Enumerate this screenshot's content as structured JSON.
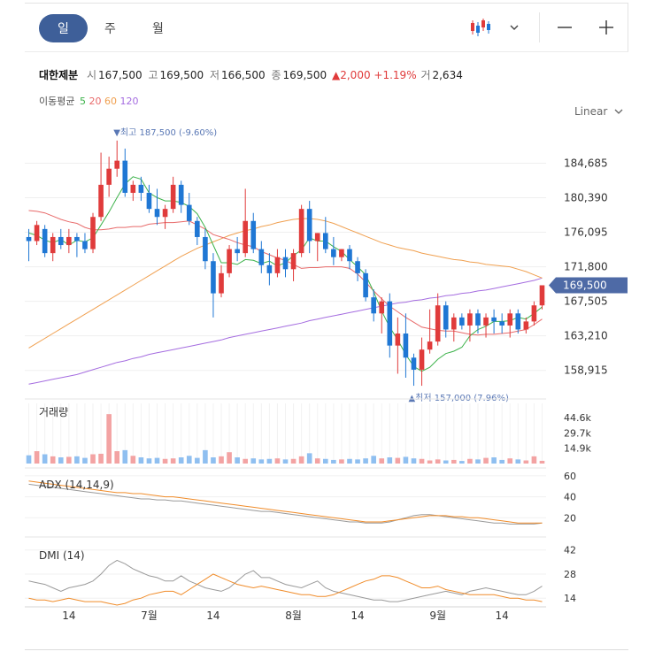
{
  "tabs": [
    "일",
    "주",
    "월"
  ],
  "selected_tab": "일",
  "scale_mode": "Linear",
  "icons": {
    "chart_type": "candlestick-chart-icon",
    "dropdown": "chevron-down-icon",
    "zoom_out": "minus-icon",
    "zoom_in": "plus-icon"
  },
  "colors": {
    "up": "#e03b3b",
    "down": "#1f77d4",
    "tab_active": "#3e5f99",
    "ma5": "#3cb24a",
    "ma20": "#e86a6a",
    "ma60": "#f0a050",
    "ma120": "#a56de0",
    "price_badge": "#4e6aa6"
  },
  "stock": {
    "name": "대한제분",
    "open_label": "시",
    "open": "167,500",
    "high_label": "고",
    "high": "169,500",
    "low_label": "저",
    "low": "166,500",
    "close_label": "종",
    "close": "169,500",
    "change": "▲2,000",
    "change_pct": "+1.19%",
    "volume_label": "거",
    "volume": "2,634"
  },
  "moving_average": {
    "label": "이동평균",
    "periods": [
      "5",
      "20",
      "60",
      "120"
    ]
  },
  "chart_data": {
    "type": "candlestick",
    "price_axis": {
      "ticks": [
        "184,685",
        "180,390",
        "176,095",
        "171,800",
        "167,505",
        "163,210",
        "158,915"
      ],
      "ylim": [
        155800,
        189800
      ]
    },
    "current_price": "169,500",
    "max_marker": "▼최고 187,500 (-9.60%)",
    "min_marker": "▲최저 157,000 (7.96%)",
    "x_labels": [
      "14",
      "7월",
      "14",
      "8월",
      "14",
      "9월",
      "14"
    ],
    "ohlc": [
      [
        175500,
        176500,
        172500,
        175000
      ],
      [
        175000,
        177500,
        174500,
        177000
      ],
      [
        176500,
        177000,
        173000,
        173500
      ],
      [
        173500,
        176000,
        172500,
        175500
      ],
      [
        175500,
        176500,
        174000,
        174500
      ],
      [
        174500,
        176500,
        173500,
        175500
      ],
      [
        175500,
        176000,
        173000,
        175000
      ],
      [
        175000,
        176000,
        173500,
        174000
      ],
      [
        174000,
        178500,
        173500,
        178000
      ],
      [
        178000,
        186000,
        177500,
        182000
      ],
      [
        182000,
        185500,
        180500,
        184000
      ],
      [
        184000,
        187500,
        183000,
        185000
      ],
      [
        185000,
        186500,
        180500,
        181000
      ],
      [
        181000,
        182500,
        180000,
        182000
      ],
      [
        182000,
        183000,
        180000,
        181000
      ],
      [
        181000,
        182000,
        178500,
        179000
      ],
      [
        179000,
        181500,
        177000,
        178000
      ],
      [
        178000,
        179500,
        176500,
        179000
      ],
      [
        179000,
        183000,
        178500,
        182000
      ],
      [
        182000,
        182500,
        178500,
        179500
      ],
      [
        179500,
        181000,
        177000,
        177500
      ],
      [
        177500,
        178000,
        174500,
        175500
      ],
      [
        175500,
        176500,
        171500,
        172500
      ],
      [
        172500,
        173500,
        165500,
        168500
      ],
      [
        168500,
        172000,
        168000,
        171000
      ],
      [
        171000,
        174500,
        170500,
        174000
      ],
      [
        174000,
        175500,
        172500,
        173500
      ],
      [
        173500,
        181500,
        173000,
        177500
      ],
      [
        177500,
        178500,
        173500,
        174000
      ],
      [
        174000,
        175000,
        171000,
        172000
      ],
      [
        172000,
        173500,
        169500,
        171000
      ],
      [
        171000,
        174000,
        170500,
        173000
      ],
      [
        173000,
        174000,
        170500,
        171500
      ],
      [
        171500,
        174000,
        170000,
        173500
      ],
      [
        173500,
        179500,
        173000,
        179000
      ],
      [
        179000,
        180000,
        173500,
        175000
      ],
      [
        175000,
        176000,
        172500,
        176000
      ],
      [
        176000,
        178000,
        173500,
        174000
      ],
      [
        174000,
        175500,
        172000,
        173000
      ],
      [
        173000,
        174000,
        172500,
        174000
      ],
      [
        174000,
        174500,
        171500,
        172500
      ],
      [
        172500,
        173000,
        170000,
        171000
      ],
      [
        171000,
        171500,
        167500,
        168000
      ],
      [
        168000,
        169000,
        165000,
        166000
      ],
      [
        166000,
        168000,
        163500,
        167500
      ],
      [
        167500,
        168500,
        160500,
        162000
      ],
      [
        162000,
        165500,
        158500,
        163500
      ],
      [
        163500,
        166000,
        158000,
        160500
      ],
      [
        160500,
        161000,
        157000,
        159000
      ],
      [
        159000,
        163000,
        157000,
        161500
      ],
      [
        161500,
        166500,
        161000,
        162500
      ],
      [
        162500,
        168500,
        162000,
        167000
      ],
      [
        167000,
        167500,
        163000,
        164000
      ],
      [
        164000,
        166000,
        162500,
        165500
      ],
      [
        165500,
        166000,
        164000,
        164500
      ],
      [
        164500,
        166500,
        162500,
        166000
      ],
      [
        166000,
        166500,
        163500,
        164500
      ],
      [
        164500,
        166000,
        163000,
        165500
      ],
      [
        165500,
        166500,
        163500,
        165000
      ],
      [
        165000,
        166000,
        163500,
        164500
      ],
      [
        164500,
        166500,
        163000,
        166000
      ],
      [
        166000,
        166500,
        163500,
        164000
      ],
      [
        164000,
        165500,
        163500,
        165000
      ],
      [
        165000,
        167500,
        164500,
        167000
      ],
      [
        167000,
        169500,
        166500,
        169500
      ]
    ],
    "ma5": [
      176000,
      175700,
      175100,
      174800,
      175200,
      174500,
      175100,
      174900,
      175400,
      177000,
      178600,
      180400,
      182100,
      183000,
      182700,
      181000,
      180400,
      180000,
      180000,
      179800,
      179300,
      178400,
      176700,
      174500,
      172300,
      172300,
      172100,
      172700,
      172600,
      172200,
      172500,
      171900,
      172300,
      173200,
      173900,
      175400,
      175000,
      175000,
      174300,
      173700,
      172700,
      171800,
      170800,
      168700,
      166300,
      164300,
      162700,
      160900,
      159400,
      158800,
      159300,
      160300,
      161000,
      161300,
      161800,
      163200,
      164000,
      164400,
      165000,
      165000,
      165100,
      165500,
      165300,
      166000,
      166800
    ],
    "ma20": [
      178800,
      178700,
      178500,
      178100,
      177700,
      177400,
      177200,
      176700,
      176400,
      176400,
      176500,
      176700,
      176700,
      176800,
      176800,
      177100,
      177200,
      177300,
      177300,
      177400,
      177500,
      177000,
      176500,
      175800,
      175500,
      175200,
      174800,
      174500,
      174300,
      173700,
      173300,
      172900,
      172600,
      172100,
      171600,
      171700,
      171700,
      171800,
      171800,
      171800,
      171600,
      170900,
      169900,
      168800,
      167800,
      166900,
      166200,
      165500,
      164900,
      164300,
      164100,
      163900,
      163800,
      163800,
      163600,
      163400,
      163300,
      163400,
      163400,
      163500,
      163600,
      163800,
      164000,
      164600,
      165300
    ],
    "ma60": [
      161700,
      162300,
      162900,
      163500,
      164100,
      164700,
      165300,
      165900,
      166500,
      167100,
      167700,
      168300,
      168900,
      169500,
      170100,
      170700,
      171300,
      171900,
      172500,
      173100,
      173600,
      174100,
      174500,
      174900,
      175300,
      175700,
      176000,
      176300,
      176500,
      176800,
      177000,
      177300,
      177500,
      177700,
      177800,
      177800,
      177700,
      177500,
      177200,
      176800,
      176400,
      176000,
      175600,
      175200,
      174800,
      174500,
      174200,
      174000,
      173800,
      173500,
      173300,
      173100,
      172900,
      172700,
      172600,
      172400,
      172300,
      172100,
      172000,
      171900,
      171800,
      171500,
      171200,
      170800,
      170400
    ],
    "ma120": [
      157200,
      157400,
      157600,
      157800,
      158000,
      158200,
      158400,
      158700,
      159000,
      159300,
      159600,
      159900,
      160100,
      160400,
      160600,
      160900,
      161100,
      161300,
      161500,
      161700,
      161900,
      162100,
      162300,
      162500,
      162700,
      163000,
      163200,
      163400,
      163600,
      163800,
      164000,
      164200,
      164400,
      164600,
      164800,
      165100,
      165300,
      165500,
      165700,
      165900,
      166100,
      166300,
      166500,
      166700,
      166900,
      167100,
      167300,
      167400,
      167600,
      167700,
      167900,
      168000,
      168200,
      168300,
      168500,
      168600,
      168800,
      168900,
      169100,
      169300,
      169500,
      169700,
      169900,
      170100,
      170400
    ],
    "volume": {
      "label": "거래량",
      "ticks": [
        "44.6k",
        "29.7k",
        "14.9k"
      ],
      "max": 55000,
      "values": [
        8000,
        12000,
        9000,
        7000,
        6000,
        6500,
        7000,
        5500,
        9000,
        9500,
        48000,
        12000,
        13000,
        7500,
        6000,
        5000,
        5500,
        4500,
        5000,
        6000,
        7500,
        5500,
        13000,
        6000,
        7000,
        11000,
        6000,
        4500,
        5000,
        4000,
        4500,
        5000,
        4000,
        4500,
        7000,
        10000,
        5000,
        4500,
        3500,
        4000,
        4500,
        4000,
        5000,
        7500,
        5000,
        6000,
        5500,
        6500,
        5000,
        4500,
        3000,
        4000,
        3000,
        3500,
        2500,
        4500,
        4000,
        5500,
        6000,
        3500,
        5000,
        4000,
        3000,
        7000,
        2634
      ]
    },
    "adx": {
      "label": "ADX (14,14,9)",
      "ticks": [
        "60",
        "40",
        "20"
      ],
      "ylim": [
        5,
        65
      ],
      "series": [
        {
          "name": "ADX",
          "color": "#9a9a9a",
          "values": [
            52,
            51,
            50,
            49,
            48,
            47,
            46,
            45,
            44,
            43,
            42,
            41,
            40,
            39,
            38,
            38,
            37,
            37,
            36,
            36,
            35,
            34,
            33,
            32,
            31,
            30,
            29,
            28,
            27,
            26,
            26,
            25,
            24,
            23,
            22,
            21,
            20,
            19,
            18,
            17,
            16,
            16,
            15,
            15,
            15,
            16,
            18,
            20,
            22,
            23,
            23,
            22,
            21,
            20,
            19,
            18,
            17,
            16,
            15,
            15,
            14,
            14,
            14,
            14,
            15
          ]
        },
        {
          "name": "ADXR",
          "color": "#f08c2a",
          "values": [
            55,
            54,
            53,
            52,
            51,
            50,
            49,
            48,
            47,
            46,
            45,
            44,
            44,
            43,
            43,
            42,
            41,
            40,
            40,
            39,
            38,
            37,
            36,
            35,
            34,
            33,
            32,
            31,
            30,
            29,
            28,
            27,
            26,
            25,
            24,
            23,
            22,
            21,
            20,
            19,
            18,
            17,
            16,
            16,
            16,
            17,
            18,
            19,
            20,
            21,
            22,
            22,
            22,
            21,
            21,
            20,
            20,
            19,
            18,
            17,
            16,
            15,
            15,
            15,
            15
          ]
        }
      ]
    },
    "dmi": {
      "label": "DMI (14)",
      "ticks": [
        "42",
        "28",
        "14"
      ],
      "ylim": [
        10,
        47
      ],
      "series": [
        {
          "name": "+DI",
          "color": "#9a9a9a",
          "values": [
            24,
            23,
            22,
            20,
            18,
            20,
            21,
            22,
            24,
            28,
            33,
            36,
            34,
            31,
            29,
            27,
            26,
            24,
            24,
            27,
            24,
            22,
            20,
            19,
            18,
            20,
            24,
            28,
            30,
            26,
            26,
            24,
            22,
            21,
            20,
            22,
            24,
            20,
            18,
            17,
            16,
            15,
            14,
            13,
            13,
            12,
            12,
            13,
            14,
            15,
            16,
            17,
            18,
            17,
            16,
            18,
            19,
            20,
            19,
            18,
            17,
            16,
            16,
            18,
            21
          ]
        },
        {
          "name": "-DI",
          "color": "#f08c2a",
          "values": [
            14,
            13,
            13,
            12,
            13,
            14,
            13,
            12,
            12,
            12,
            11,
            10,
            11,
            13,
            14,
            16,
            17,
            18,
            18,
            16,
            19,
            22,
            25,
            28,
            26,
            24,
            22,
            21,
            20,
            21,
            20,
            19,
            18,
            17,
            16,
            16,
            15,
            15,
            16,
            18,
            20,
            22,
            24,
            25,
            27,
            27,
            26,
            24,
            22,
            20,
            20,
            21,
            19,
            18,
            17,
            16,
            16,
            16,
            16,
            15,
            14,
            14,
            13,
            13,
            12
          ]
        }
      ]
    }
  }
}
